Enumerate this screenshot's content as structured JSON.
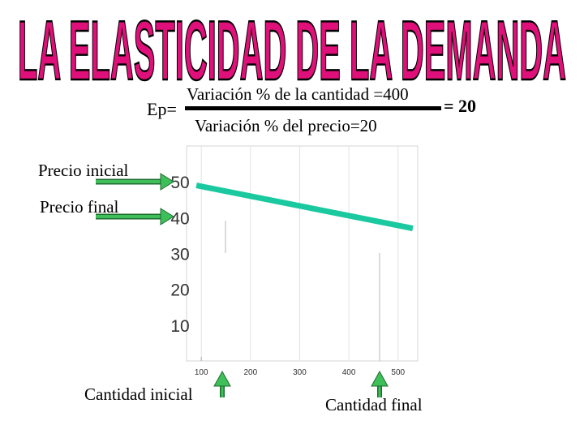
{
  "title": "LA ELASTICIDAD DE LA DEMANDA",
  "formula": {
    "lhs": "Ep=",
    "numerator": "Variación % de la cantidad =400",
    "denominator": "Variación % del precio=20",
    "result": "= 20"
  },
  "labels": {
    "precio_inicial": "Precio inicial",
    "precio_final": "Precio final",
    "cantidad_inicial": "Cantidad inicial",
    "cantidad_final": "Cantidad final"
  },
  "colors": {
    "title_fill": "#e0107a",
    "line": "#1ac9a0",
    "arrow": "#2ea84a"
  },
  "chart_data": {
    "type": "line",
    "x_ticks": [
      "100",
      "200",
      "300",
      "400",
      "500"
    ],
    "y_ticks": [
      "50",
      "40",
      "30",
      "20",
      "10"
    ],
    "series": [
      {
        "x": [
          90,
          530
        ],
        "y": [
          49,
          37
        ]
      }
    ],
    "xlim": [
      70,
      540
    ],
    "ylim": [
      0,
      60
    ]
  }
}
